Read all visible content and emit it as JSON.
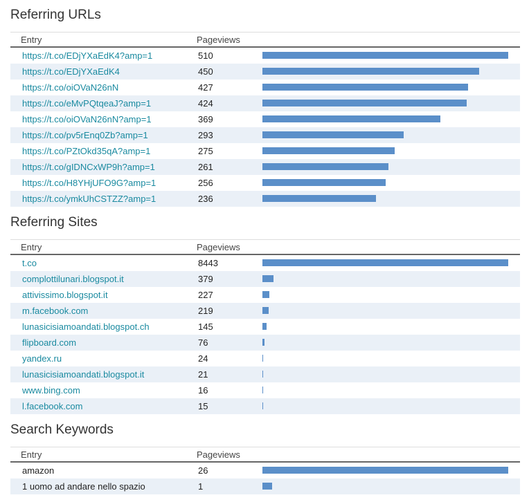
{
  "colors": {
    "link": "#1a8aa0",
    "bar": "#5b8fc9",
    "alt_row": "#eaf0f7"
  },
  "sections": [
    {
      "id": "referring-urls",
      "title": "Referring URLs",
      "col_entry": "Entry",
      "col_pageviews": "Pageviews",
      "link_entries": true,
      "rows": [
        {
          "entry": "https://t.co/EDjYXaEdK4?amp=1",
          "pageviews": 510
        },
        {
          "entry": "https://t.co/EDjYXaEdK4",
          "pageviews": 450
        },
        {
          "entry": "https://t.co/oiOVaN26nN",
          "pageviews": 427
        },
        {
          "entry": "https://t.co/eMvPQtqeaJ?amp=1",
          "pageviews": 424
        },
        {
          "entry": "https://t.co/oiOVaN26nN?amp=1",
          "pageviews": 369
        },
        {
          "entry": "https://t.co/pv5rEnq0Zb?amp=1",
          "pageviews": 293
        },
        {
          "entry": "https://t.co/PZtOkd35qA?amp=1",
          "pageviews": 275
        },
        {
          "entry": "https://t.co/gIDNCxWP9h?amp=1",
          "pageviews": 261
        },
        {
          "entry": "https://t.co/H8YHjUFO9G?amp=1",
          "pageviews": 256
        },
        {
          "entry": "https://t.co/ymkUhCSTZZ?amp=1",
          "pageviews": 236
        }
      ]
    },
    {
      "id": "referring-sites",
      "title": "Referring Sites",
      "col_entry": "Entry",
      "col_pageviews": "Pageviews",
      "link_entries": true,
      "rows": [
        {
          "entry": "t.co",
          "pageviews": 8443
        },
        {
          "entry": "complottilunari.blogspot.it",
          "pageviews": 379
        },
        {
          "entry": "attivissimo.blogspot.it",
          "pageviews": 227
        },
        {
          "entry": "m.facebook.com",
          "pageviews": 219
        },
        {
          "entry": "lunasicisiamoandati.blogspot.ch",
          "pageviews": 145
        },
        {
          "entry": "flipboard.com",
          "pageviews": 76
        },
        {
          "entry": "yandex.ru",
          "pageviews": 24
        },
        {
          "entry": "lunasicisiamoandati.blogspot.it",
          "pageviews": 21
        },
        {
          "entry": "www.bing.com",
          "pageviews": 16
        },
        {
          "entry": "l.facebook.com",
          "pageviews": 15
        }
      ]
    },
    {
      "id": "search-keywords",
      "title": "Search Keywords",
      "col_entry": "Entry",
      "col_pageviews": "Pageviews",
      "link_entries": false,
      "rows": [
        {
          "entry": "amazon",
          "pageviews": 26
        },
        {
          "entry": "1 uomo ad andare nello spazio",
          "pageviews": 1
        }
      ]
    }
  ]
}
